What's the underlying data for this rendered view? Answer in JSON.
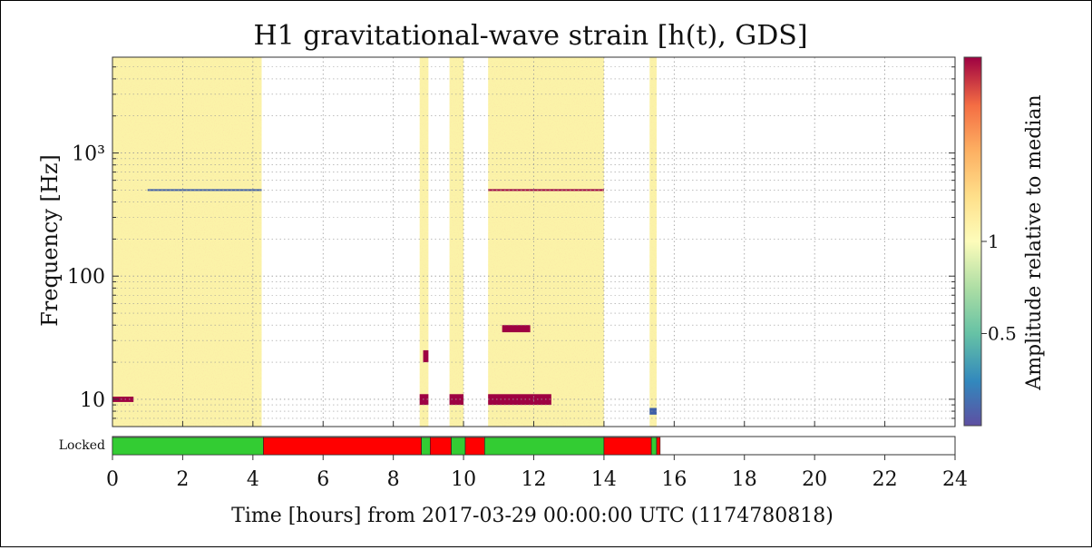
{
  "chart_data": {
    "type": "heatmap",
    "title": "H1 gravitational-wave strain [h(t), GDS]",
    "xlabel": "Time [hours] from 2017-03-29 00:00:00 UTC (1174780818)",
    "ylabel": "Frequency [Hz]",
    "xlim": [
      0,
      24
    ],
    "x_ticks": [
      "0",
      "2",
      "4",
      "6",
      "8",
      "10",
      "12",
      "14",
      "16",
      "18",
      "20",
      "22",
      "24"
    ],
    "y_scale": "log",
    "ylim": [
      6,
      6000
    ],
    "y_ticks": [
      {
        "value": 10,
        "label": "10"
      },
      {
        "value": 100,
        "label": "100"
      },
      {
        "value": 1000,
        "label": "10³"
      }
    ],
    "grid": true,
    "colorbar": {
      "label": "Amplitude relative to median",
      "scale": "log",
      "range": [
        0.25,
        4
      ],
      "ticks": [
        {
          "value": 0.5,
          "label": "0.5"
        },
        {
          "value": 1,
          "label": "1"
        }
      ],
      "colormap": "Spectral_r"
    },
    "data_segments_hours": [
      [
        0,
        4.25
      ],
      [
        8.75,
        9.0
      ],
      [
        9.6,
        10.0
      ],
      [
        10.7,
        14.0
      ],
      [
        15.3,
        15.5
      ]
    ],
    "features": [
      {
        "t0": 1.0,
        "t1": 4.25,
        "f0": 500,
        "f1": 500,
        "level": "low"
      },
      {
        "t0": 10.7,
        "t1": 14.0,
        "f0": 500,
        "f1": 500,
        "level": "high"
      },
      {
        "t0": 0,
        "t1": 0.6,
        "f0": 9.5,
        "f1": 10.5,
        "level": "high"
      },
      {
        "t0": 8.75,
        "t1": 9.0,
        "f0": 9,
        "f1": 11,
        "level": "high"
      },
      {
        "t0": 9.6,
        "t1": 10.0,
        "f0": 9,
        "f1": 11,
        "level": "high"
      },
      {
        "t0": 10.7,
        "t1": 12.5,
        "f0": 9,
        "f1": 11,
        "level": "high"
      },
      {
        "t0": 11.1,
        "t1": 11.9,
        "f0": 35,
        "f1": 40,
        "level": "high"
      },
      {
        "t0": 8.85,
        "t1": 9.0,
        "f0": 20,
        "f1": 25,
        "level": "high"
      },
      {
        "t0": 15.3,
        "t1": 15.5,
        "f0": 7.5,
        "f1": 8.5,
        "level": "low"
      }
    ],
    "state_bar": {
      "label": "Locked",
      "on_color": "#33cc33",
      "off_color": "#ff0000",
      "segments": [
        {
          "start": 0,
          "end": 4.3,
          "state": "on"
        },
        {
          "start": 4.3,
          "end": 8.8,
          "state": "off"
        },
        {
          "start": 8.8,
          "end": 9.05,
          "state": "on"
        },
        {
          "start": 9.05,
          "end": 9.65,
          "state": "off"
        },
        {
          "start": 9.65,
          "end": 10.05,
          "state": "on"
        },
        {
          "start": 10.05,
          "end": 10.6,
          "state": "off"
        },
        {
          "start": 10.6,
          "end": 14.0,
          "state": "on"
        },
        {
          "start": 14.0,
          "end": 15.35,
          "state": "off"
        },
        {
          "start": 15.35,
          "end": 15.5,
          "state": "on"
        },
        {
          "start": 15.5,
          "end": 15.6,
          "state": "off"
        }
      ]
    }
  }
}
